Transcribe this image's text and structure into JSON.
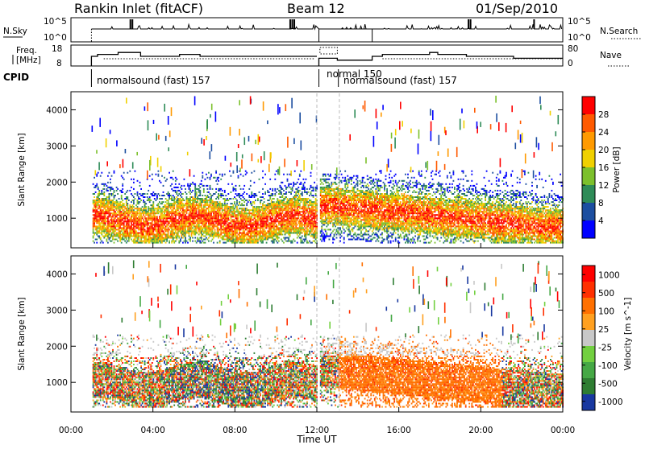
{
  "header": {
    "site": "Rankin Inlet (fitACF)",
    "beam": "Beam 12",
    "date": "01/Sep/2010"
  },
  "nsky_panel": {
    "label_left": "N.Sky",
    "label_right": "N.Search",
    "ytick_top": "10^5",
    "ytick_bottom": "10^0"
  },
  "freq_panel": {
    "label_line1": "Freq.",
    "label_line2": "[MHz]",
    "label_right": "Nave",
    "left_ticks": [
      "18",
      "8"
    ],
    "right_ticks": [
      "80",
      "0"
    ],
    "freq_steps": [
      {
        "x0": 1.0,
        "x1": 1.3,
        "v": 13
      },
      {
        "x0": 1.3,
        "x1": 2.3,
        "v": 14
      },
      {
        "x0": 2.3,
        "x1": 3.4,
        "v": 15
      },
      {
        "x0": 3.4,
        "x1": 5.3,
        "v": 13
      },
      {
        "x0": 5.3,
        "x1": 6.3,
        "v": 14
      },
      {
        "x0": 6.3,
        "x1": 9.8,
        "v": 13
      },
      {
        "x0": 9.8,
        "x1": 12.0,
        "v": 13
      }
    ],
    "freq_steps_b": [
      {
        "x0": 12.1,
        "x1": 13.0,
        "v": 12
      },
      {
        "x0": 13.0,
        "x1": 14.7,
        "v": 11
      },
      {
        "x0": 14.7,
        "x1": 15.2,
        "v": 13
      },
      {
        "x0": 15.2,
        "x1": 17.5,
        "v": 14
      },
      {
        "x0": 17.5,
        "x1": 17.9,
        "v": 15
      },
      {
        "x0": 17.9,
        "x1": 19.3,
        "v": 14
      },
      {
        "x0": 19.3,
        "x1": 21.6,
        "v": 13
      },
      {
        "x0": 21.6,
        "x1": 24.0,
        "v": 12
      }
    ]
  },
  "cpid": {
    "label": "CPID",
    "segments": [
      {
        "name": "normalsound (fast) 157",
        "start": 1.0
      },
      {
        "name": "normal 150",
        "start": 12.1
      },
      {
        "name": "normalsound (fast) 157",
        "start": 13.1
      }
    ]
  },
  "chart_data": [
    {
      "type": "heatmap",
      "title": "",
      "ylabel": "Slant Range [km]",
      "xlabel": "Time UT",
      "xlim": [
        0,
        24
      ],
      "ylim": [
        180,
        4500
      ],
      "yticks": [
        "1000",
        "2000",
        "3000",
        "4000"
      ],
      "colorbar": {
        "label": "Power [dB]",
        "ticks": [
          "4",
          "8",
          "12",
          "16",
          "20",
          "24",
          "28"
        ],
        "colors": [
          "#0000ff",
          "#1c4ea0",
          "#2e8b57",
          "#7cc02c",
          "#f0d000",
          "#ff9a00",
          "#ff5a00",
          "#ff0000"
        ]
      }
    },
    {
      "type": "heatmap",
      "title": "",
      "ylabel": "Slant Range [km]",
      "xlabel": "Time UT",
      "xlim": [
        0,
        24
      ],
      "ylim": [
        180,
        4500
      ],
      "yticks": [
        "1000",
        "2000",
        "3000",
        "4000"
      ],
      "colorbar": {
        "label": "Velocity [m s^-1]",
        "ticks": [
          "1000",
          "500",
          "100",
          "25",
          "-25",
          "-100",
          "-500",
          "-1000"
        ],
        "colors": [
          "#1838a0",
          "#2e7d32",
          "#45a845",
          "#72d040",
          "#c8c8c8",
          "#ffa020",
          "#ff7000",
          "#ff3000",
          "#ff0000"
        ]
      }
    }
  ],
  "time_axis": {
    "label": "Time UT",
    "ticks": [
      "00:00",
      "04:00",
      "08:00",
      "12:00",
      "16:00",
      "20:00",
      "00:00"
    ]
  }
}
